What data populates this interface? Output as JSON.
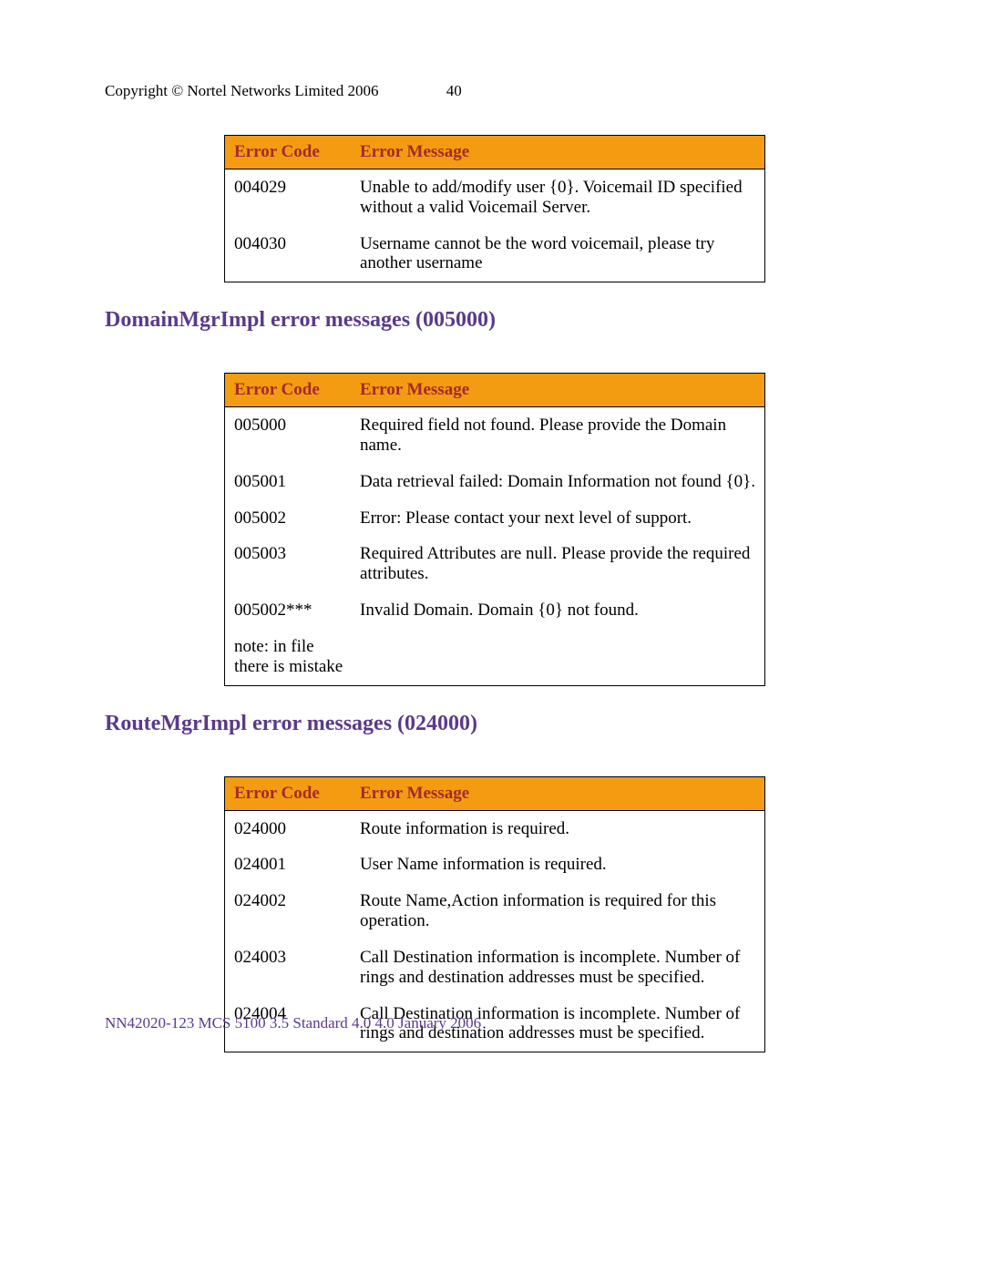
{
  "colors": {
    "table_header_bg": "#f39c12",
    "table_header_text": "#a52a2a",
    "section_heading": "#5a3a8a",
    "footer_text": "#5a3a8a",
    "body_text": "#000000",
    "page_bg": "#ffffff",
    "border": "#000000"
  },
  "header": {
    "copyright": "Copyright © Nortel Networks Limited 2006",
    "page_number": "40"
  },
  "table_headers": {
    "code": "Error Code",
    "msg": "Error Message"
  },
  "table1": {
    "rows": [
      {
        "code": "004029",
        "msg": "Unable to add/modify user {0}. Voicemail ID specified without a valid Voicemail Server."
      },
      {
        "code": "004030",
        "msg": "Username cannot be the word voicemail, please try another username"
      }
    ]
  },
  "section2": {
    "title": "DomainMgrImpl error messages (005000)",
    "rows": [
      {
        "code": "005000",
        "msg": "Required field not found. Please provide the Domain name."
      },
      {
        "code": "005001",
        "msg": "Data retrieval failed: Domain Information not found {0}."
      },
      {
        "code": "005002",
        "msg": "Error: Please contact your next level of support."
      },
      {
        "code": "005003",
        "msg": "Required Attributes are null. Please provide the required attributes."
      },
      {
        "code": "005002***",
        "msg": "Invalid Domain. Domain {0} not found."
      },
      {
        "code": "note: in file there is mistake",
        "msg": ""
      }
    ]
  },
  "section3": {
    "title": "RouteMgrImpl error messages (024000)",
    "rows": [
      {
        "code": "024000",
        "msg": "Route information is required."
      },
      {
        "code": "024001",
        "msg": "User Name information is required."
      },
      {
        "code": "024002",
        "msg": "Route Name,Action information is required for this operation."
      },
      {
        "code": "024003",
        "msg": "Call Destination information is incomplete. Number of rings and destination addresses must be specified."
      },
      {
        "code": "024004",
        "msg": "Call Destination information is incomplete. Number of rings and destination addresses must be specified."
      }
    ]
  },
  "footer": "NN42020-123   MCS 5100 3.5   Standard 4.0    4.0   January 2006"
}
